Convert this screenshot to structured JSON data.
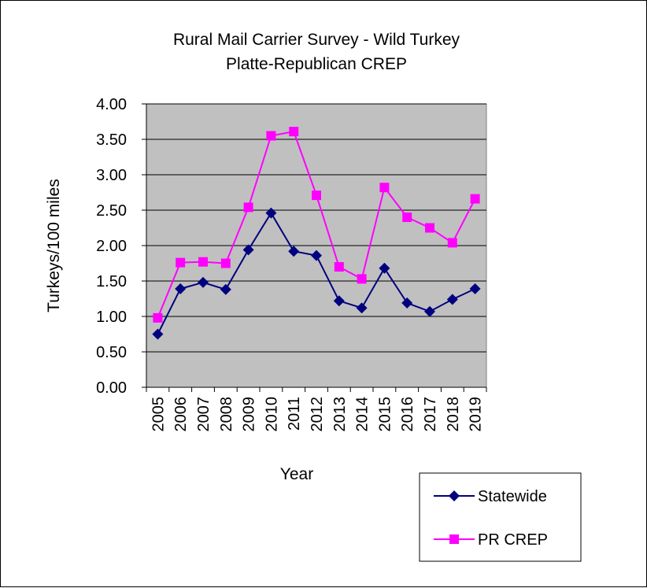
{
  "chart_data": {
    "type": "line",
    "title_lines": [
      "Rural Mail Carrier Survey - Wild Turkey",
      "Platte-Republican CREP"
    ],
    "xlabel": "Year",
    "ylabel": "Turkeys/100 miles",
    "categories": [
      "2005",
      "2006",
      "2007",
      "2008",
      "2009",
      "2010",
      "2011",
      "2012",
      "2013",
      "2014",
      "2015",
      "2016",
      "2017",
      "2018",
      "2019"
    ],
    "ylim": [
      0,
      4
    ],
    "yticks": [
      "0.00",
      "0.50",
      "1.00",
      "1.50",
      "2.00",
      "2.50",
      "3.00",
      "3.50",
      "4.00"
    ],
    "grid": true,
    "legend_position": "bottom-right",
    "plot_background": "#c0c0c0",
    "series": [
      {
        "name": "Statewide",
        "color": "#000080",
        "marker": "diamond",
        "values": [
          0.75,
          1.39,
          1.48,
          1.38,
          1.94,
          2.46,
          1.92,
          1.86,
          1.22,
          1.12,
          1.68,
          1.19,
          1.07,
          1.24,
          1.39
        ]
      },
      {
        "name": "PR CREP",
        "color": "#ff00ff",
        "marker": "square",
        "values": [
          0.98,
          1.76,
          1.77,
          1.75,
          2.54,
          3.55,
          3.61,
          2.71,
          1.7,
          1.53,
          2.82,
          2.4,
          2.25,
          2.04,
          2.66
        ]
      }
    ]
  }
}
